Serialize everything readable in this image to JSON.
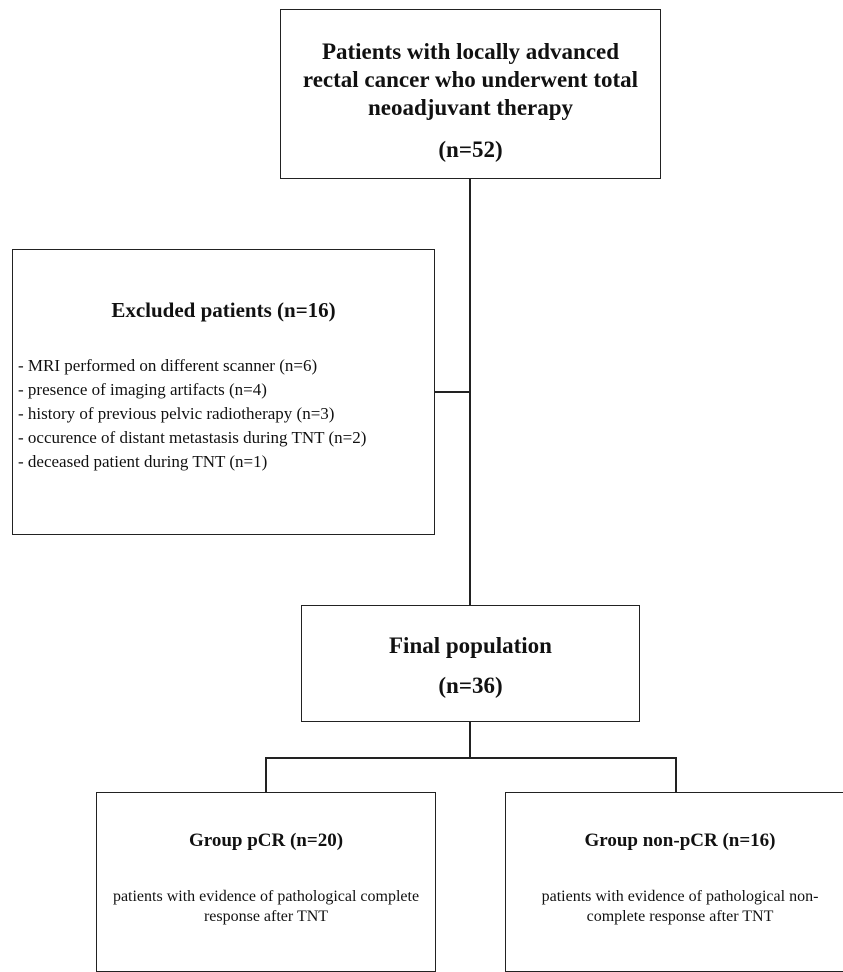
{
  "top": {
    "title": "Patients with locally advanced rectal cancer who underwent total neoadjuvant therapy",
    "n": "(n=52)"
  },
  "excluded": {
    "title": "Excluded patients (n=16)",
    "items": [
      "- MRI performed on different scanner (n=6)",
      "- presence of imaging artifacts (n=4)",
      "- history of previous pelvic radiotherapy (n=3)",
      "- occurence of distant metastasis during TNT (n=2)",
      "- deceased patient during TNT (n=1)"
    ]
  },
  "final": {
    "title": "Final population",
    "n": "(n=36)"
  },
  "groups": [
    {
      "title": "Group pCR (n=20)",
      "description": "patients with evidence of pathological complete response after TNT"
    },
    {
      "title": "Group non-pCR (n=16)",
      "description": "patients with evidence of pathological non-complete response after TNT"
    }
  ],
  "colors": {
    "line": "#222222",
    "text": "#111111",
    "background": "#ffffff"
  }
}
